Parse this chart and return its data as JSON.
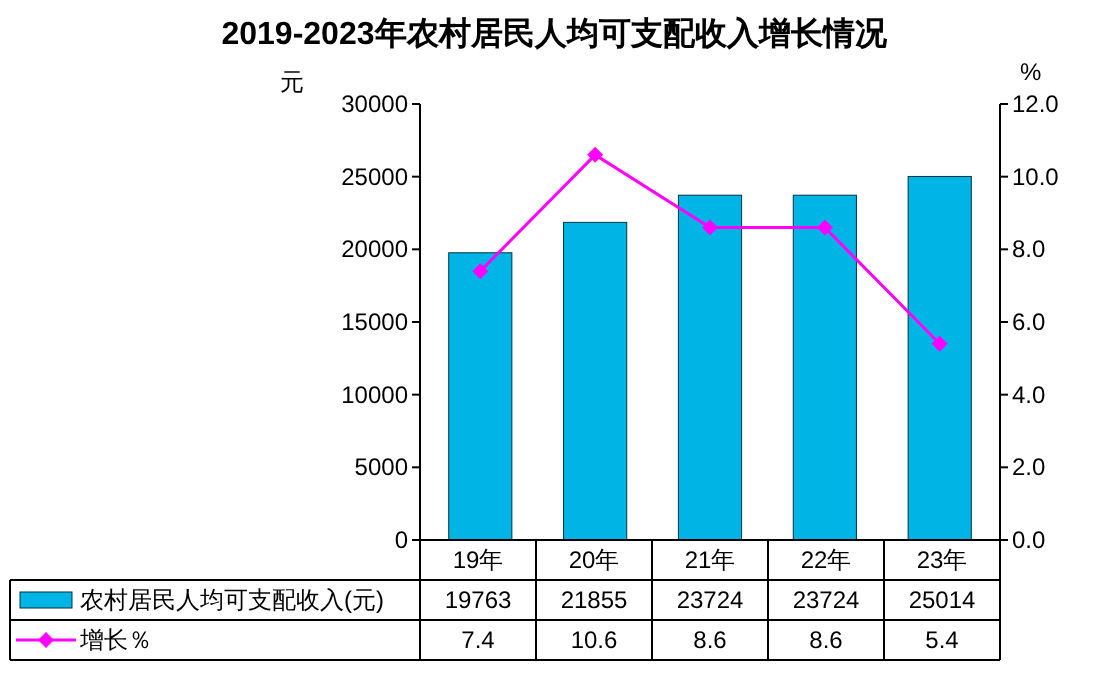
{
  "chart_data": {
    "type": "bar",
    "title": "2019-2023年农村居民人均可支配收入增长情况",
    "ylabel": "元",
    "y2label": "%",
    "categories": [
      "19年",
      "20年",
      "21年",
      "22年",
      "23年"
    ],
    "series": [
      {
        "name": "农村居民人均可支配收入(元)",
        "color": "#00b4e6",
        "values": [
          19763,
          21855,
          23724,
          23724,
          25014
        ]
      },
      {
        "name": "增长％",
        "type": "line",
        "axis": "y2",
        "color": "#ff00ff",
        "values": [
          7.4,
          10.6,
          8.6,
          8.6,
          5.4
        ]
      }
    ],
    "ylim": [
      0,
      30000
    ],
    "yticks": [
      0,
      5000,
      10000,
      15000,
      20000,
      25000,
      30000
    ],
    "y2lim": [
      0,
      12
    ],
    "y2ticks": [
      {
        "value": 0,
        "label": "0.0"
      },
      {
        "value": 2,
        "label": "2.0"
      },
      {
        "value": 4,
        "label": "4.0"
      },
      {
        "value": 6,
        "label": "6.0"
      },
      {
        "value": 8,
        "label": "8.0"
      },
      {
        "value": 10,
        "label": "10.0"
      },
      {
        "value": 12,
        "label": "12.0"
      }
    ],
    "data_labels": true,
    "legend": "bottom",
    "marker": "diamond",
    "line_style": "solid",
    "grid": false
  }
}
